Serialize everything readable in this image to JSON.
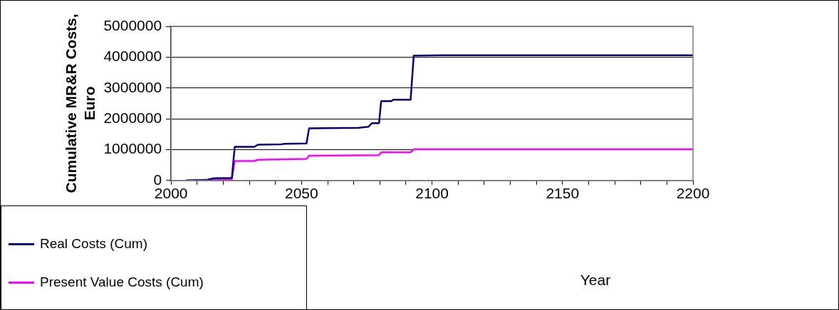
{
  "chart_data": {
    "type": "line",
    "ylabel": "Cumulative MR&R Costs, Euro",
    "xlabel": "Year",
    "xlim": [
      2000,
      2200
    ],
    "xticks": [
      2000,
      {
        "value": 2010,
        "label": null
      },
      {
        "value": 2020,
        "label": null
      },
      {
        "value": 2030,
        "label": null
      },
      {
        "value": 2040,
        "label": null
      },
      2050,
      {
        "value": 2060,
        "label": null
      },
      {
        "value": 2070,
        "label": null
      },
      {
        "value": 2080,
        "label": null
      },
      {
        "value": 2090,
        "label": null
      },
      2100,
      {
        "value": 2110,
        "label": null
      },
      {
        "value": 2120,
        "label": null
      },
      {
        "value": 2130,
        "label": null
      },
      {
        "value": 2140,
        "label": null
      },
      2150,
      {
        "value": 2160,
        "label": null
      },
      {
        "value": 2170,
        "label": null
      },
      {
        "value": 2180,
        "label": null
      },
      {
        "value": 2190,
        "label": null
      },
      2200
    ],
    "ylim": [
      0,
      5000000
    ],
    "yticks": [
      0,
      1000000,
      2000000,
      3000000,
      4000000,
      5000000
    ],
    "grid": "y",
    "legend": "bottom left",
    "marker": "none",
    "line_style": "solid",
    "series": [
      {
        "name": "Real Costs (Cum)",
        "color": "#000080",
        "x": [
          2005.8,
          2014,
          2016.3,
          2023.3,
          2024.4,
          2031.9,
          2033.3,
          2042.2,
          2043.5,
          2051.9,
          2052.9,
          2071.9,
          2075.6,
          2077,
          2079.7,
          2080.5,
          2084.4,
          2085.2,
          2091.8,
          2093,
          2104,
          2200
        ],
        "values": [
          0,
          20000,
          70000,
          80000,
          1090000,
          1090000,
          1160000,
          1170000,
          1190000,
          1200000,
          1690000,
          1710000,
          1740000,
          1860000,
          1860000,
          2570000,
          2570000,
          2620000,
          2620000,
          4050000,
          4060000,
          4060000
        ]
      },
      {
        "name": "Present Value Costs (Cum)",
        "color": "#ff00ff",
        "x": [
          2005.8,
          2016.3,
          2023.3,
          2024.4,
          2031.9,
          2033.3,
          2051.9,
          2052.9,
          2079.7,
          2080.5,
          2091.8,
          2093,
          2200
        ],
        "values": [
          0,
          30000,
          40000,
          630000,
          630000,
          670000,
          700000,
          800000,
          820000,
          910000,
          910000,
          1010000,
          1010000
        ]
      }
    ]
  }
}
